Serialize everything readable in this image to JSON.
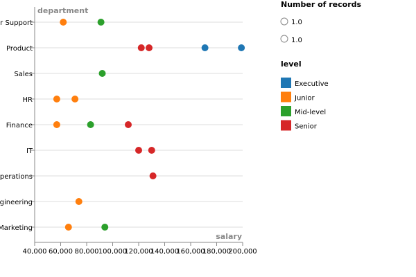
{
  "chart_data": {
    "type": "scatter",
    "xlabel": "salary",
    "ylabel": "department",
    "xlim": [
      40000,
      200000
    ],
    "x_ticks": [
      "40,000",
      "60,000",
      "80,000",
      "100,000",
      "120,000",
      "140,000",
      "160,000",
      "180,000",
      "200,000"
    ],
    "categories": [
      "r Support",
      "Product",
      "Sales",
      "HR",
      "Finance",
      "IT",
      "perations",
      "gineering",
      "Marketing"
    ],
    "grid": true,
    "legend_placement": "right",
    "size_legend": {
      "title": "Number of records",
      "entries": [
        "1.0",
        "1.0"
      ]
    },
    "color_legend": {
      "title": "level",
      "entries": [
        {
          "label": "Executive",
          "color": "#1f77b4"
        },
        {
          "label": "Junior",
          "color": "#ff7f0e"
        },
        {
          "label": "Mid-level",
          "color": "#2ca02c"
        },
        {
          "label": "Senior",
          "color": "#d62728"
        }
      ]
    },
    "points": [
      {
        "category": "r Support",
        "level": "Junior",
        "x": 62000
      },
      {
        "category": "r Support",
        "level": "Mid-level",
        "x": 91000
      },
      {
        "category": "Product",
        "level": "Senior",
        "x": 122000
      },
      {
        "category": "Product",
        "level": "Senior",
        "x": 128000
      },
      {
        "category": "Product",
        "level": "Executive",
        "x": 171000
      },
      {
        "category": "Product",
        "level": "Executive",
        "x": 199000
      },
      {
        "category": "Sales",
        "level": "Mid-level",
        "x": 92000
      },
      {
        "category": "HR",
        "level": "Junior",
        "x": 57000
      },
      {
        "category": "HR",
        "level": "Junior",
        "x": 71000
      },
      {
        "category": "Finance",
        "level": "Junior",
        "x": 57000
      },
      {
        "category": "Finance",
        "level": "Mid-level",
        "x": 83000
      },
      {
        "category": "Finance",
        "level": "Senior",
        "x": 112000
      },
      {
        "category": "IT",
        "level": "Senior",
        "x": 120000
      },
      {
        "category": "IT",
        "level": "Senior",
        "x": 130000
      },
      {
        "category": "perations",
        "level": "Senior",
        "x": 131000
      },
      {
        "category": "gineering",
        "level": "Junior",
        "x": 74000
      },
      {
        "category": "Marketing",
        "level": "Junior",
        "x": 66000
      },
      {
        "category": "Marketing",
        "level": "Mid-level",
        "x": 94000
      }
    ]
  }
}
